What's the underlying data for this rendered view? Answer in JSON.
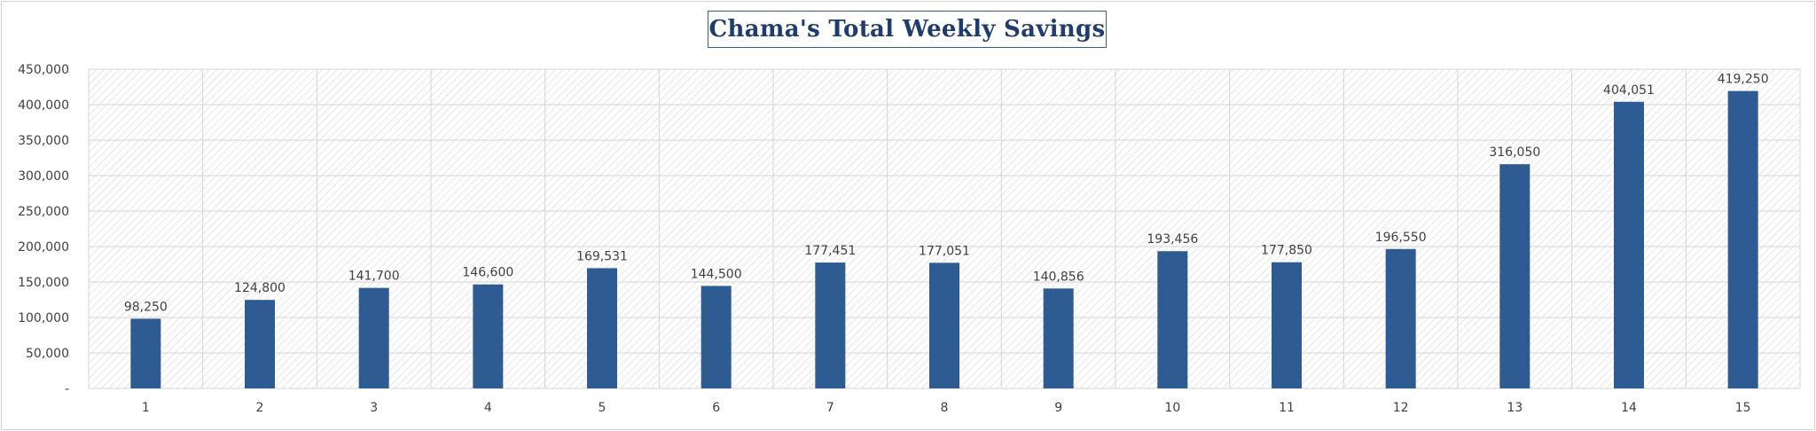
{
  "chart_data": {
    "type": "bar",
    "title": "Chama's Total Weekly Savings",
    "xlabel": "",
    "ylabel": "",
    "categories": [
      "1",
      "2",
      "3",
      "4",
      "5",
      "6",
      "7",
      "8",
      "9",
      "10",
      "11",
      "12",
      "13",
      "14",
      "15"
    ],
    "values": [
      98250,
      124800,
      141700,
      146600,
      169531,
      144500,
      177451,
      177051,
      140856,
      193456,
      177850,
      196550,
      316050,
      404051,
      419250
    ],
    "data_labels": [
      "98,250",
      "124,800",
      "141,700",
      "146,600",
      "169,531",
      "144,500",
      "177,451",
      "177,051",
      "140,856",
      "193,456",
      "177,850",
      "196,550",
      "316,050",
      "404,051",
      "419,250"
    ],
    "ylim": [
      0,
      450000
    ],
    "yticks": [
      0,
      50000,
      100000,
      150000,
      200000,
      250000,
      300000,
      350000,
      400000,
      450000
    ],
    "ytick_labels": [
      "-",
      "50,000",
      "100,000",
      "150,000",
      "200,000",
      "250,000",
      "300,000",
      "350,000",
      "400,000",
      "450,000"
    ],
    "grid": true,
    "legend": "none",
    "bar_color": "#2f5b93"
  }
}
